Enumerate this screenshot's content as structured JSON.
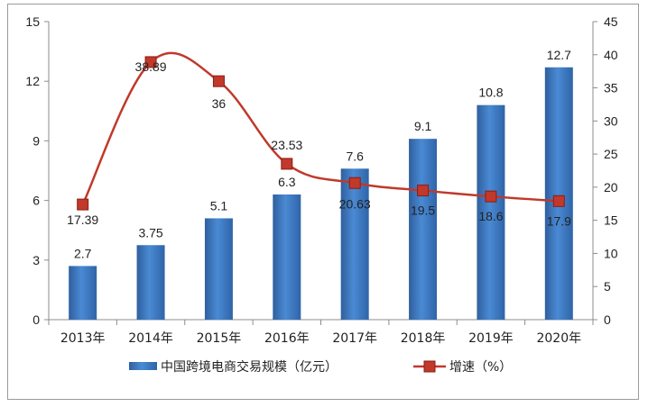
{
  "chart_data": {
    "type": "bar",
    "categories": [
      "2013年",
      "2014年",
      "2015年",
      "2016年",
      "2017年",
      "2018年",
      "2019年",
      "2020年"
    ],
    "series": [
      {
        "name": "中国跨境电商交易规模（亿元）",
        "type": "bar",
        "axis": "left",
        "values": [
          2.7,
          3.75,
          5.1,
          6.3,
          7.6,
          9.1,
          10.8,
          12.7
        ],
        "labels": [
          "2.7",
          "3.75",
          "5.1",
          "6.3",
          "7.6",
          "9.1",
          "10.8",
          "12.7"
        ],
        "color": "#3a78c3"
      },
      {
        "name": "增速（%）",
        "type": "line",
        "axis": "right",
        "values": [
          17.39,
          38.89,
          36,
          23.53,
          20.63,
          19.5,
          18.6,
          17.9
        ],
        "labels": [
          "17.39",
          "38.89",
          "36",
          "23.53",
          "20.63",
          "19.5",
          "18.6",
          "17.9"
        ],
        "color": "#c0392b"
      }
    ],
    "y_left": {
      "min": 0,
      "max": 15,
      "ticks": [
        "0",
        "3",
        "6",
        "9",
        "12",
        "15"
      ]
    },
    "y_right": {
      "min": 0,
      "max": 45,
      "ticks": [
        "0",
        "5",
        "10",
        "15",
        "20",
        "25",
        "30",
        "35",
        "40",
        "45"
      ]
    },
    "grid": false,
    "legend_position": "bottom"
  }
}
